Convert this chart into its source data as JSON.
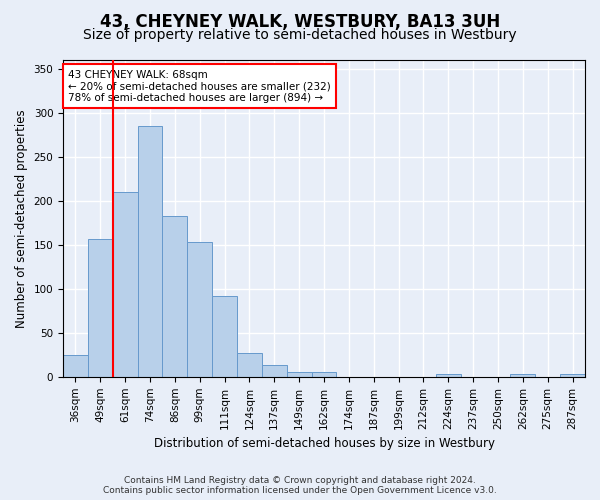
{
  "title": "43, CHEYNEY WALK, WESTBURY, BA13 3UH",
  "subtitle": "Size of property relative to semi-detached houses in Westbury",
  "xlabel": "Distribution of semi-detached houses by size in Westbury",
  "ylabel": "Number of semi-detached properties",
  "categories": [
    "36sqm",
    "49sqm",
    "61sqm",
    "74sqm",
    "86sqm",
    "99sqm",
    "111sqm",
    "124sqm",
    "137sqm",
    "149sqm",
    "162sqm",
    "174sqm",
    "187sqm",
    "199sqm",
    "212sqm",
    "224sqm",
    "237sqm",
    "250sqm",
    "262sqm",
    "275sqm",
    "287sqm"
  ],
  "values": [
    25,
    157,
    210,
    285,
    183,
    153,
    92,
    27,
    13,
    6,
    5,
    0,
    0,
    0,
    0,
    3,
    0,
    0,
    3,
    0,
    3
  ],
  "bar_color": "#b8d0ea",
  "bar_edge_color": "#6699cc",
  "vline_position": 1.5,
  "vline_color": "red",
  "annotation_text": "43 CHEYNEY WALK: 68sqm\n← 20% of semi-detached houses are smaller (232)\n78% of semi-detached houses are larger (894) →",
  "annotation_box_color": "white",
  "annotation_box_edge": "red",
  "ylim": [
    0,
    360
  ],
  "yticks": [
    0,
    50,
    100,
    150,
    200,
    250,
    300,
    350
  ],
  "footer_line1": "Contains HM Land Registry data © Crown copyright and database right 2024.",
  "footer_line2": "Contains public sector information licensed under the Open Government Licence v3.0.",
  "bg_color": "#e8eef8",
  "plot_bg_color": "#e8eef8",
  "grid_color": "#ffffff",
  "title_fontsize": 12,
  "subtitle_fontsize": 10,
  "axis_label_fontsize": 8.5,
  "tick_fontsize": 7.5,
  "annotation_fontsize": 7.5,
  "footer_fontsize": 6.5
}
